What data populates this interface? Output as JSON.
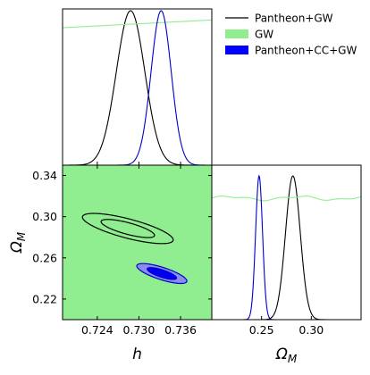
{
  "chart_data": {
    "type": "corner",
    "legend": {
      "placement": "top-right",
      "entries": [
        {
          "label": "Pantheon+GW",
          "style": "line",
          "color": "#000000"
        },
        {
          "label": "GW",
          "style": "patch",
          "color": "#90ee90"
        },
        {
          "label": "Pantheon+CC+GW",
          "style": "patch",
          "color": "#0000ff"
        }
      ]
    },
    "parameters": {
      "h": {
        "label": "h",
        "range": [
          0.719,
          0.7405
        ],
        "ticks": [
          0.724,
          0.73,
          0.736
        ],
        "tick_labels": [
          "0.724",
          "0.730",
          "0.736"
        ]
      },
      "omega_m": {
        "label": "Ω",
        "subscript": "M",
        "range": [
          0.2,
          0.35
        ],
        "ticks": [
          0.22,
          0.26,
          0.3,
          0.34
        ],
        "tick_labels": [
          "0.22",
          "0.26",
          "0.30",
          "0.34"
        ],
        "diag_ticks": [
          0.25,
          0.3
        ],
        "diag_tick_labels": [
          "0.25",
          "0.30"
        ],
        "diag_range": [
          0.2,
          0.35
        ]
      }
    },
    "marginal_h": {
      "series": [
        {
          "name": "Pantheon+GW",
          "color": "#000000",
          "kind": "gaussian",
          "mean": 0.7288,
          "sigma": 0.00205
        },
        {
          "name": "GW",
          "color": "#90ee90",
          "kind": "linear",
          "start": [
            0.719,
            0.89
          ],
          "end": [
            0.7405,
            0.94
          ]
        },
        {
          "name": "Pantheon+CC+GW",
          "color": "#0000cc",
          "kind": "gaussian",
          "mean": 0.7332,
          "sigma": 0.00145
        }
      ]
    },
    "marginal_omega_m": {
      "series": [
        {
          "name": "Pantheon+GW",
          "color": "#000000",
          "kind": "gaussian",
          "mean": 0.2815,
          "sigma": 0.0074
        },
        {
          "name": "GW",
          "color": "#90ee90",
          "kind": "wavy",
          "level": 0.845,
          "amplitude": 0.012
        },
        {
          "name": "Pantheon+CC+GW",
          "color": "#0000cc",
          "kind": "gaussian",
          "mean": 0.2475,
          "sigma": 0.0035
        }
      ]
    },
    "joint": {
      "background_color": "#90ee90",
      "contours": [
        {
          "name": "Pantheon+GW 2σ",
          "stroke": "#000000",
          "fill": "none",
          "center": [
            0.7284,
            0.2885
          ],
          "radius_h": 0.00475,
          "radius_om": 0.0148,
          "angle_deg": 33
        },
        {
          "name": "Pantheon+GW 1σ",
          "stroke": "#000000",
          "fill": "none",
          "center": [
            0.7284,
            0.2885
          ],
          "radius_h": 0.0028,
          "radius_om": 0.0089,
          "angle_deg": 33
        },
        {
          "name": "Pantheon+CC+GW 2σ",
          "stroke": "#0000cc",
          "fill": "#8c8cf0",
          "center": [
            0.7333,
            0.2448
          ],
          "radius_h": 0.00265,
          "radius_om": 0.0096,
          "angle_deg": 34
        },
        {
          "name": "Pantheon+CC+GW 1σ",
          "stroke": "#0000cc",
          "fill": "#0000ee",
          "center": [
            0.7333,
            0.2448
          ],
          "radius_h": 0.00155,
          "radius_om": 0.0057,
          "angle_deg": 34
        }
      ]
    }
  }
}
